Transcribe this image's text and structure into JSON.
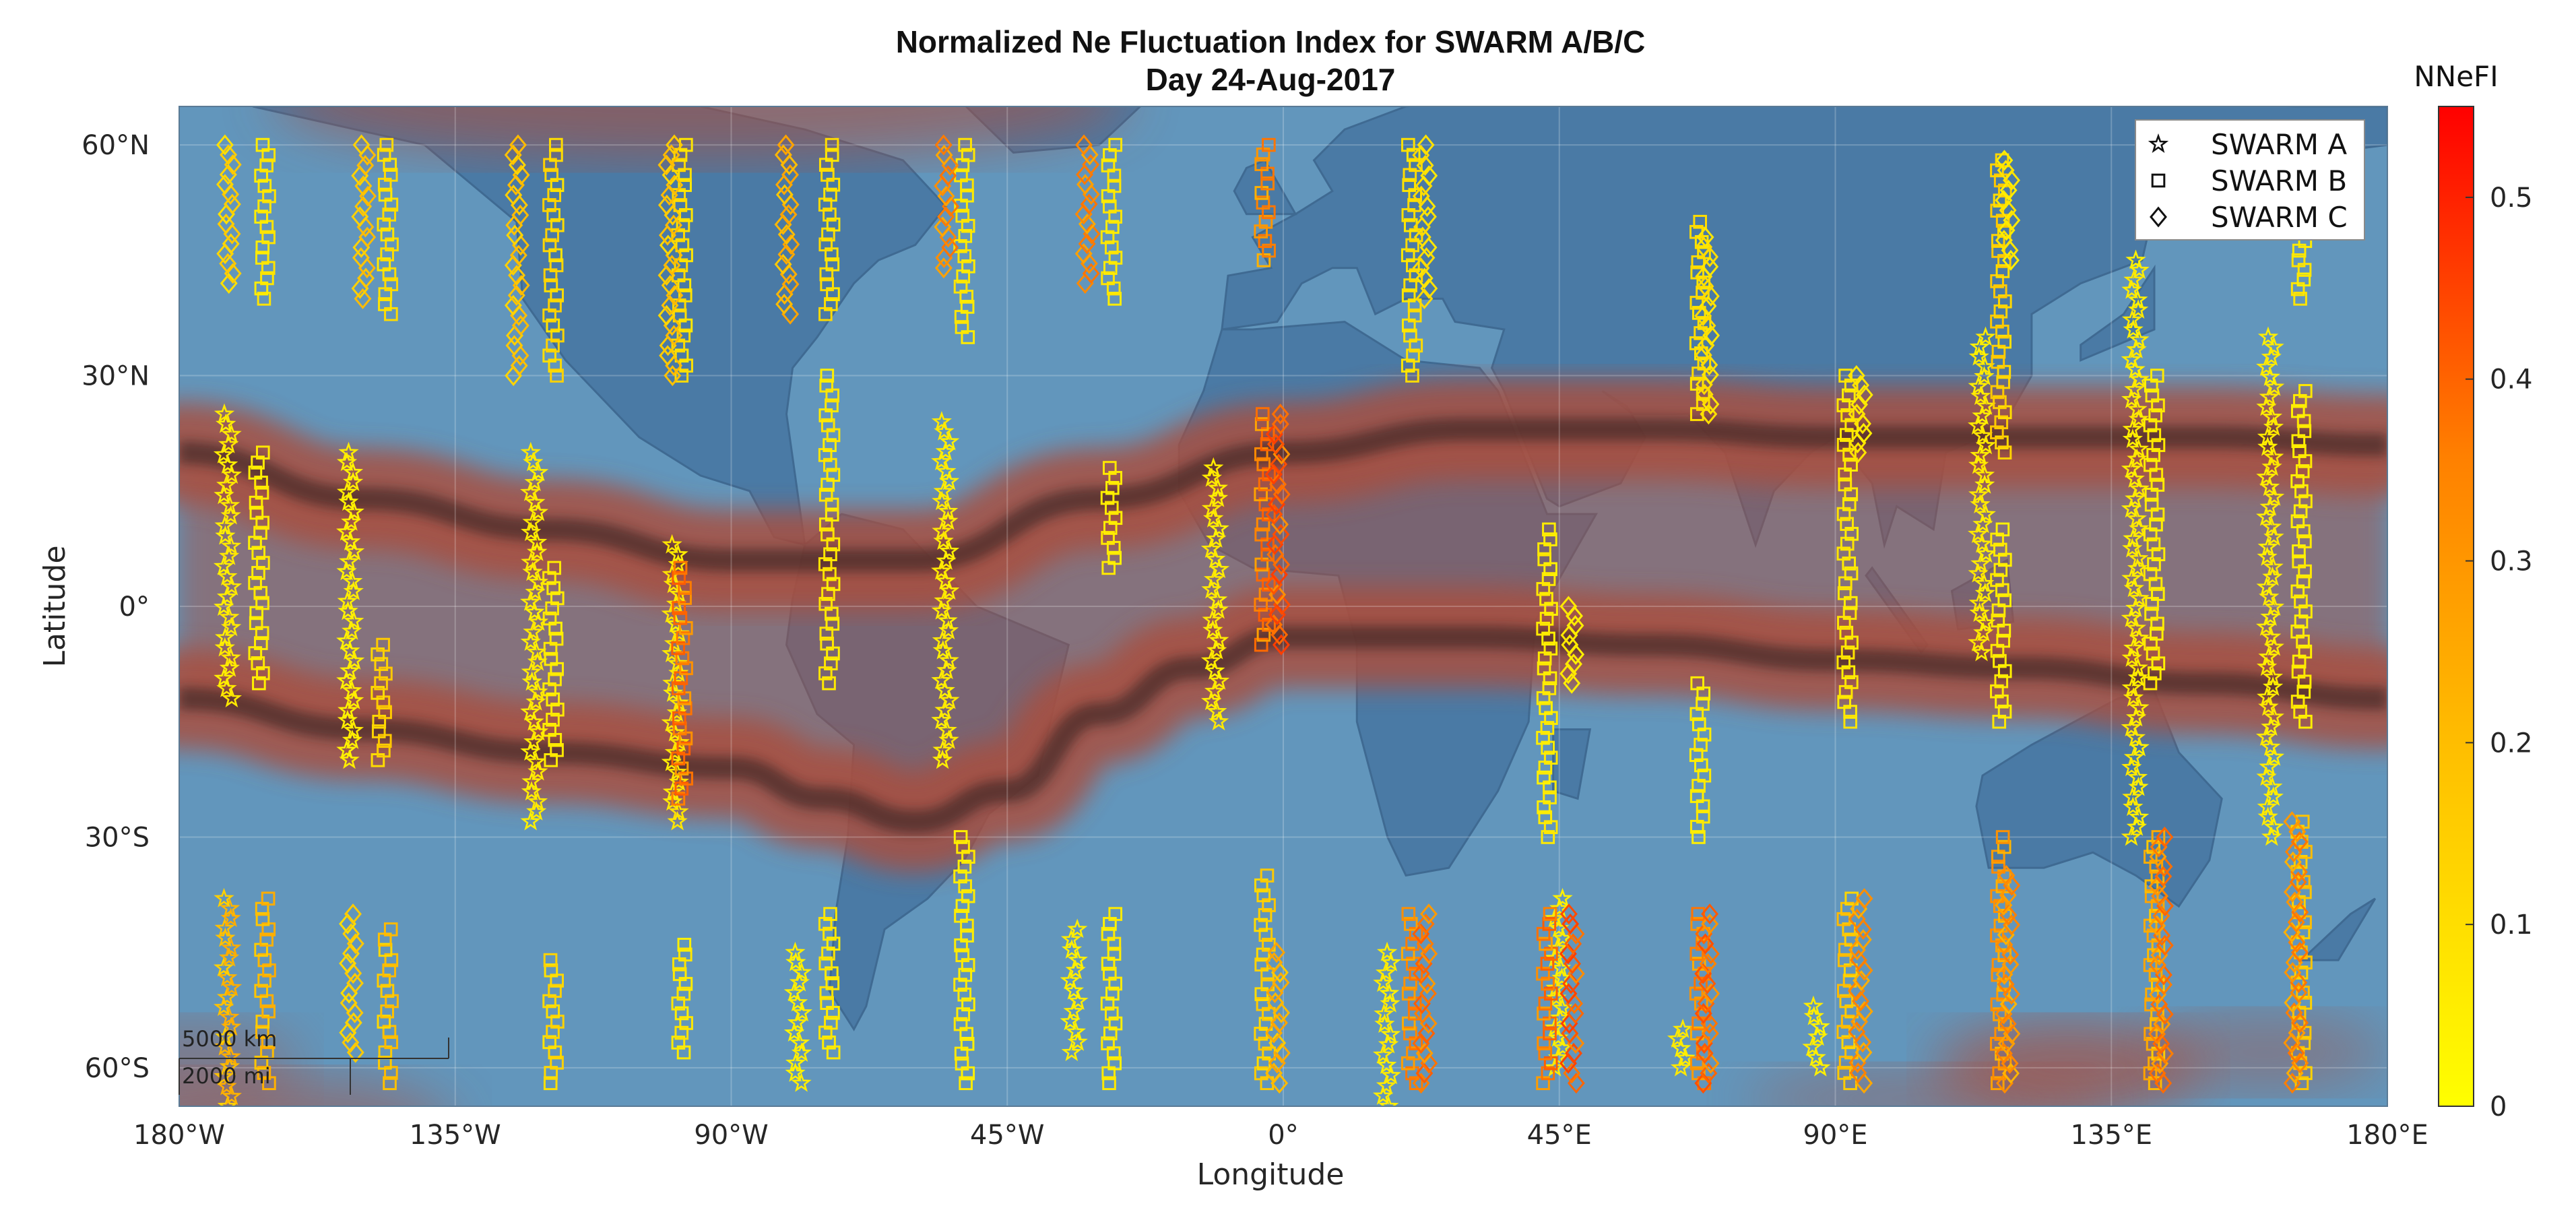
{
  "chart_data": {
    "type": "scatter",
    "title": "Normalized Ne Fluctuation Index for SWARM A/B/C",
    "subtitle": "Day 24-Aug-2017",
    "xlabel": "Longitude",
    "ylabel": "Latitude",
    "xlim": [
      -180,
      180
    ],
    "ylim": [
      -65,
      65
    ],
    "x_ticks": [
      -180,
      -135,
      -90,
      -45,
      0,
      45,
      90,
      135,
      180
    ],
    "x_tick_labels": [
      "180°W",
      "135°W",
      "90°W",
      "45°W",
      "0°",
      "45°E",
      "90°E",
      "135°E",
      "180°E"
    ],
    "y_ticks": [
      60,
      30,
      0,
      -30,
      -60
    ],
    "y_tick_labels": [
      "60°N",
      "30°N",
      "0°",
      "30°S",
      "60°S"
    ],
    "grid": true,
    "colorbar": {
      "label": "NNeFI",
      "range": [
        0,
        0.55
      ],
      "ticks": [
        0,
        0.1,
        0.2,
        0.3,
        0.4,
        0.5
      ],
      "tick_labels": [
        "0",
        "0.1",
        "0.2",
        "0.3",
        "0.4",
        "0.5"
      ],
      "colormap": [
        "#ffff00",
        "#ffc000",
        "#ff8000",
        "#ff0000"
      ]
    },
    "legend": {
      "position": "top-right",
      "entries": [
        {
          "label": "SWARM A",
          "marker": "star"
        },
        {
          "label": "SWARM B",
          "marker": "square"
        },
        {
          "label": "SWARM C",
          "marker": "diamond"
        }
      ]
    },
    "scalebar": {
      "km": "5000 km",
      "mi": "2000 mi"
    },
    "background_colors": {
      "ocean": "#6296bc",
      "land": "#4a7aa5",
      "band": "#a85040",
      "band_core": "#2a1c1c"
    },
    "anomaly_bands": {
      "north_crest": [
        [
          -180,
          20
        ],
        [
          -150,
          14
        ],
        [
          -120,
          10
        ],
        [
          -90,
          6
        ],
        [
          -60,
          6
        ],
        [
          -30,
          14
        ],
        [
          0,
          20
        ],
        [
          30,
          23
        ],
        [
          60,
          23
        ],
        [
          90,
          22
        ],
        [
          120,
          22
        ],
        [
          150,
          22
        ],
        [
          180,
          21
        ]
      ],
      "south_crest": [
        [
          -180,
          -12
        ],
        [
          -150,
          -16
        ],
        [
          -120,
          -19
        ],
        [
          -90,
          -21
        ],
        [
          -75,
          -25
        ],
        [
          -60,
          -28
        ],
        [
          -45,
          -24
        ],
        [
          -30,
          -14
        ],
        [
          -15,
          -8
        ],
        [
          0,
          -4
        ],
        [
          30,
          -4
        ],
        [
          60,
          -5
        ],
        [
          90,
          -7
        ],
        [
          120,
          -8
        ],
        [
          150,
          -10
        ],
        [
          180,
          -12
        ]
      ]
    },
    "series": [
      {
        "name": "SWARM A",
        "marker": "star",
        "tracks": [
          {
            "lon": -171,
            "lat": [
              -65,
              -38
            ],
            "nnefi": 0.18
          },
          {
            "lon": -171,
            "lat": [
              -12,
              25
            ],
            "nnefi": 0.05
          },
          {
            "lon": -151,
            "lat": [
              -20,
              20
            ],
            "nnefi": 0.04
          },
          {
            "lon": -121,
            "lat": [
              -28,
              20
            ],
            "nnefi": 0.05
          },
          {
            "lon": -98,
            "lat": [
              -28,
              8
            ],
            "nnefi": 0.06
          },
          {
            "lon": -78,
            "lat": [
              -62,
              -45
            ],
            "nnefi": 0.04
          },
          {
            "lon": -54,
            "lat": [
              -20,
              24
            ],
            "nnefi": 0.05
          },
          {
            "lon": -33,
            "lat": [
              -58,
              -42
            ],
            "nnefi": 0.04
          },
          {
            "lon": -10,
            "lat": [
              -15,
              18
            ],
            "nnefi": 0.05
          },
          {
            "lon": 18,
            "lat": [
              -45,
              -65
            ],
            "nnefi": 0.05
          },
          {
            "lon": 46,
            "lat": [
              -38,
              -60
            ],
            "nnefi": 0.05
          },
          {
            "lon": 66,
            "lat": [
              -60,
              -55
            ],
            "nnefi": 0.05
          },
          {
            "lon": 88,
            "lat": [
              -60,
              -52
            ],
            "nnefi": 0.04
          },
          {
            "lon": 115,
            "lat": [
              -6,
              35
            ],
            "nnefi": 0.05
          },
          {
            "lon": 140,
            "lat": [
              -30,
              45
            ],
            "nnefi": 0.05
          },
          {
            "lon": 162,
            "lat": [
              -30,
              35
            ],
            "nnefi": 0.05
          }
        ]
      },
      {
        "name": "SWARM B",
        "marker": "square",
        "tracks": [
          {
            "lon": -167,
            "lat": [
              -10,
              20
            ],
            "nnefi": 0.05
          },
          {
            "lon": -166,
            "lat": [
              -62,
              -38
            ],
            "nnefi": 0.18
          },
          {
            "lon": -166,
            "lat": [
              40,
              60
            ],
            "nnefi": 0.06
          },
          {
            "lon": -147,
            "lat": [
              -20,
              -5
            ],
            "nnefi": 0.12
          },
          {
            "lon": -146,
            "lat": [
              -62,
              -42
            ],
            "nnefi": 0.15
          },
          {
            "lon": -146,
            "lat": [
              38,
              60
            ],
            "nnefi": 0.08
          },
          {
            "lon": -119,
            "lat": [
              -62,
              -46
            ],
            "nnefi": 0.1
          },
          {
            "lon": -119,
            "lat": [
              -20,
              5
            ],
            "nnefi": 0.05
          },
          {
            "lon": -119,
            "lat": [
              30,
              60
            ],
            "nnefi": 0.1
          },
          {
            "lon": -98,
            "lat": [
              -58,
              -44
            ],
            "nnefi": 0.06
          },
          {
            "lon": -98,
            "lat": [
              -25,
              5
            ],
            "nnefi": 0.35
          },
          {
            "lon": -98,
            "lat": [
              30,
              60
            ],
            "nnefi": 0.08
          },
          {
            "lon": -74,
            "lat": [
              -58,
              -40
            ],
            "nnefi": 0.06
          },
          {
            "lon": -74,
            "lat": [
              -10,
              30
            ],
            "nnefi": 0.06
          },
          {
            "lon": -74,
            "lat": [
              38,
              60
            ],
            "nnefi": 0.08
          },
          {
            "lon": -52,
            "lat": [
              -62,
              -30
            ],
            "nnefi": 0.05
          },
          {
            "lon": -52,
            "lat": [
              35,
              60
            ],
            "nnefi": 0.06
          },
          {
            "lon": -28,
            "lat": [
              -62,
              -40
            ],
            "nnefi": 0.05
          },
          {
            "lon": -28,
            "lat": [
              5,
              18
            ],
            "nnefi": 0.05
          },
          {
            "lon": -28,
            "lat": [
              40,
              60
            ],
            "nnefi": 0.06
          },
          {
            "lon": -3,
            "lat": [
              -62,
              -35
            ],
            "nnefi": 0.12
          },
          {
            "lon": -3,
            "lat": [
              -5,
              25
            ],
            "nnefi": 0.35
          },
          {
            "lon": -3,
            "lat": [
              45,
              60
            ],
            "nnefi": 0.3
          },
          {
            "lon": 21,
            "lat": [
              -62,
              -40
            ],
            "nnefi": 0.3
          },
          {
            "lon": 21,
            "lat": [
              30,
              60
            ],
            "nnefi": 0.08
          },
          {
            "lon": 43,
            "lat": [
              -62,
              -40
            ],
            "nnefi": 0.35
          },
          {
            "lon": 43,
            "lat": [
              -30,
              10
            ],
            "nnefi": 0.05
          },
          {
            "lon": 68,
            "lat": [
              -62,
              -40
            ],
            "nnefi": 0.3
          },
          {
            "lon": 68,
            "lat": [
              -30,
              -10
            ],
            "nnefi": 0.05
          },
          {
            "lon": 68,
            "lat": [
              25,
              50
            ],
            "nnefi": 0.08
          },
          {
            "lon": 92,
            "lat": [
              -15,
              30
            ],
            "nnefi": 0.06
          },
          {
            "lon": 92,
            "lat": [
              -62,
              -38
            ],
            "nnefi": 0.15
          },
          {
            "lon": 117,
            "lat": [
              -62,
              -30
            ],
            "nnefi": 0.25
          },
          {
            "lon": 117,
            "lat": [
              -15,
              10
            ],
            "nnefi": 0.05
          },
          {
            "lon": 117,
            "lat": [
              20,
              58
            ],
            "nnefi": 0.12
          },
          {
            "lon": 142,
            "lat": [
              -62,
              -30
            ],
            "nnefi": 0.2
          },
          {
            "lon": 142,
            "lat": [
              -10,
              30
            ],
            "nnefi": 0.05
          },
          {
            "lon": 166,
            "lat": [
              -62,
              -28
            ],
            "nnefi": 0.15
          },
          {
            "lon": 166,
            "lat": [
              -15,
              28
            ],
            "nnefi": 0.05
          },
          {
            "lon": 166,
            "lat": [
              40,
              55
            ],
            "nnefi": 0.06
          }
        ]
      },
      {
        "name": "SWARM C",
        "marker": "diamond",
        "tracks": [
          {
            "lon": -173,
            "lat": [
              42,
              60
            ],
            "nnefi": 0.12
          },
          {
            "lon": -153,
            "lat": [
              -58,
              -40
            ],
            "nnefi": 0.12
          },
          {
            "lon": -151,
            "lat": [
              40,
              60
            ],
            "nnefi": 0.15
          },
          {
            "lon": -126,
            "lat": [
              30,
              60
            ],
            "nnefi": 0.15
          },
          {
            "lon": -101,
            "lat": [
              30,
              60
            ],
            "nnefi": 0.15
          },
          {
            "lon": -82,
            "lat": [
              38,
              60
            ],
            "nnefi": 0.2
          },
          {
            "lon": -56,
            "lat": [
              44,
              60
            ],
            "nnefi": 0.3
          },
          {
            "lon": -33,
            "lat": [
              42,
              60
            ],
            "nnefi": 0.3
          },
          {
            "lon": -2,
            "lat": [
              -5,
              25
            ],
            "nnefi": 0.42
          },
          {
            "lon": -2,
            "lat": [
              -62,
              -45
            ],
            "nnefi": 0.2
          },
          {
            "lon": 22,
            "lat": [
              -62,
              -40
            ],
            "nnefi": 0.35
          },
          {
            "lon": 22,
            "lat": [
              40,
              60
            ],
            "nnefi": 0.08
          },
          {
            "lon": 46,
            "lat": [
              -62,
              -40
            ],
            "nnefi": 0.42
          },
          {
            "lon": 46,
            "lat": [
              -10,
              0
            ],
            "nnefi": 0.05
          },
          {
            "lon": 68,
            "lat": [
              -62,
              -40
            ],
            "nnefi": 0.38
          },
          {
            "lon": 68,
            "lat": [
              25,
              48
            ],
            "nnefi": 0.08
          },
          {
            "lon": 93,
            "lat": [
              -62,
              -38
            ],
            "nnefi": 0.28
          },
          {
            "lon": 93,
            "lat": [
              20,
              30
            ],
            "nnefi": 0.06
          },
          {
            "lon": 117,
            "lat": [
              -62,
              -35
            ],
            "nnefi": 0.28
          },
          {
            "lon": 117,
            "lat": [
              45,
              58
            ],
            "nnefi": 0.06
          },
          {
            "lon": 142,
            "lat": [
              -62,
              -30
            ],
            "nnefi": 0.33
          },
          {
            "lon": 164,
            "lat": [
              -62,
              -28
            ],
            "nnefi": 0.3
          }
        ]
      }
    ]
  }
}
